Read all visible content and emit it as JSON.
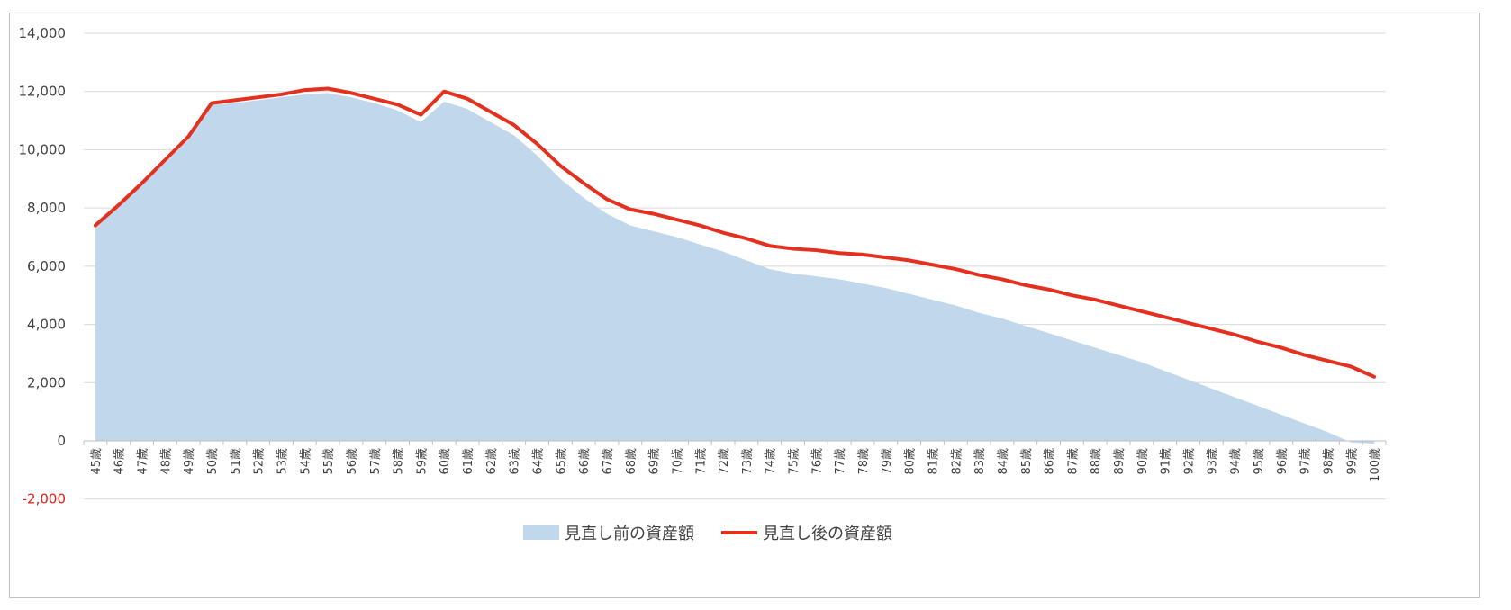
{
  "chart_data": {
    "type": "area",
    "categories": [
      "45歳",
      "46歳",
      "47歳",
      "48歳",
      "49歳",
      "50歳",
      "51歳",
      "52歳",
      "53歳",
      "54歳",
      "55歳",
      "56歳",
      "57歳",
      "58歳",
      "59歳",
      "60歳",
      "61歳",
      "62歳",
      "63歳",
      "64歳",
      "65歳",
      "66歳",
      "67歳",
      "68歳",
      "69歳",
      "70歳",
      "71歳",
      "72歳",
      "73歳",
      "74歳",
      "75歳",
      "76歳",
      "77歳",
      "78歳",
      "79歳",
      "80歳",
      "81歳",
      "82歳",
      "83歳",
      "84歳",
      "85歳",
      "86歳",
      "87歳",
      "88歳",
      "89歳",
      "90歳",
      "91歳",
      "92歳",
      "93歳",
      "94歳",
      "95歳",
      "96歳",
      "97歳",
      "98歳",
      "99歳",
      "100歳"
    ],
    "series": [
      {
        "name": "見直し前の資産額",
        "type": "area",
        "color": "#c0d7ec",
        "values": [
          7350,
          8050,
          8800,
          9550,
          10350,
          11550,
          11600,
          11700,
          11800,
          11900,
          11950,
          11800,
          11600,
          11350,
          10950,
          11650,
          11400,
          10950,
          10500,
          9800,
          9000,
          8350,
          7800,
          7400,
          7200,
          7000,
          6750,
          6500,
          6200,
          5900,
          5750,
          5650,
          5550,
          5400,
          5250,
          5050,
          4850,
          4650,
          4400,
          4200,
          3950,
          3700,
          3450,
          3200,
          2950,
          2700,
          2400,
          2100,
          1800,
          1500,
          1200,
          900,
          600,
          300,
          -50,
          -100
        ]
      },
      {
        "name": "見直し後の資産額",
        "type": "line",
        "color": "#e3301f",
        "values": [
          7400,
          8100,
          8850,
          9650,
          10450,
          11600,
          11700,
          11800,
          11900,
          12050,
          12100,
          11950,
          11750,
          11550,
          11200,
          12000,
          11750,
          11300,
          10850,
          10200,
          9450,
          8850,
          8300,
          7950,
          7800,
          7600,
          7400,
          7150,
          6950,
          6700,
          6600,
          6550,
          6450,
          6400,
          6300,
          6200,
          6050,
          5900,
          5700,
          5550,
          5350,
          5200,
          5000,
          4850,
          4650,
          4450,
          4250,
          4050,
          3850,
          3650,
          3400,
          3200,
          2950,
          2750,
          2550,
          2200
        ]
      }
    ],
    "ylim": [
      -2000,
      14000
    ],
    "yticks": [
      "14,000",
      "12,000",
      "10,000",
      "8,000",
      "6,000",
      "4,000",
      "2,000",
      "0",
      "-2,000"
    ],
    "grid": true,
    "legend_position": "bottom-center"
  }
}
